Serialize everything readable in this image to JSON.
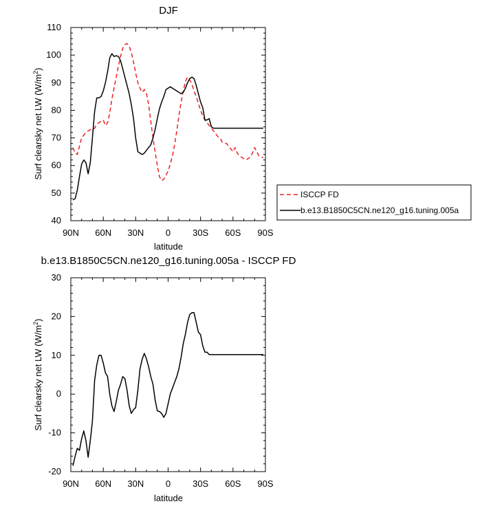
{
  "chart_data": [
    {
      "type": "line",
      "title": "DJF",
      "xlabel": "latitude",
      "ylabel": "Surf clearsky net LW (W/m",
      "ylabel_sup": "2",
      "ylabel_end": ")",
      "xlim": [
        -90,
        90
      ],
      "ylim": [
        40,
        110
      ],
      "x_ticks": [
        -90,
        -60,
        -30,
        0,
        30,
        60,
        90
      ],
      "x_tick_labels": [
        "90N",
        "60N",
        "30N",
        "0",
        "30S",
        "60S",
        "90S"
      ],
      "y_ticks": [
        40,
        50,
        60,
        70,
        80,
        90,
        100,
        110
      ],
      "y_tick_labels": [
        "40",
        "50",
        "60",
        "70",
        "80",
        "90",
        "100",
        "110"
      ],
      "grid": false,
      "legend_position": "right",
      "series": [
        {
          "name": "ISCCP FD",
          "color": "#e8221f",
          "dash": true,
          "x": [
            -88,
            -86,
            -84,
            -82,
            -80,
            -78,
            -76,
            -74,
            -72,
            -70,
            -68,
            -66,
            -64,
            -62,
            -60,
            -58,
            -56,
            -54,
            -52,
            -50,
            -48,
            -46,
            -44,
            -42,
            -40,
            -38,
            -36,
            -34,
            -32,
            -30,
            -28,
            -26,
            -24,
            -22,
            -20,
            -18,
            -16,
            -14,
            -12,
            -10,
            -8,
            -6,
            -4,
            -2,
            0,
            2,
            4,
            6,
            8,
            10,
            12,
            14,
            16,
            18,
            20,
            22,
            24,
            26,
            28,
            30,
            32,
            34,
            36,
            38,
            40,
            42,
            44,
            46,
            48,
            50,
            52,
            54,
            56,
            58,
            60,
            62,
            64,
            66,
            68,
            70,
            72,
            74,
            76,
            78,
            80,
            82,
            84,
            86,
            88
          ],
          "y": [
            66.5,
            64.5,
            64.0,
            67.0,
            70.0,
            71.0,
            72.0,
            72.5,
            73.0,
            73.0,
            73.5,
            75.0,
            75.5,
            76.0,
            76.5,
            74.5,
            75.5,
            79.0,
            84.0,
            88.0,
            92.0,
            96.0,
            99.5,
            102.5,
            103.8,
            104.2,
            103.2,
            101.0,
            97.5,
            93.5,
            90.0,
            88.0,
            86.5,
            87.5,
            86.0,
            82.0,
            76.0,
            70.0,
            65.0,
            60.0,
            56.0,
            54.5,
            55.0,
            56.5,
            58.0,
            60.5,
            63.5,
            67.5,
            72.5,
            78.0,
            83.0,
            87.0,
            90.5,
            92.0,
            91.0,
            89.5,
            87.0,
            85.0,
            82.5,
            80.0,
            78.0,
            76.5,
            75.5,
            74.5,
            73.5,
            72.5,
            71.5,
            70.5,
            70.0,
            68.5,
            68.0,
            68.0,
            67.0,
            66.0,
            65.0,
            66.5,
            64.5,
            63.5,
            63.0,
            62.5,
            62.0,
            62.5,
            63.0,
            64.5,
            66.5,
            65.0,
            63.5,
            63.0,
            63.0
          ]
        },
        {
          "name": "b.e13.B1850C5CN.ne120_g16.tuning.005a",
          "color": "#000000",
          "dash": false,
          "x": [
            -88,
            -86,
            -84,
            -82,
            -80,
            -78,
            -76,
            -74,
            -72,
            -70,
            -68,
            -66,
            -64,
            -62,
            -60,
            -58,
            -56,
            -54,
            -52,
            -50,
            -48,
            -46,
            -44,
            -42,
            -40,
            -38,
            -36,
            -34,
            -32,
            -30,
            -28,
            -26,
            -24,
            -22,
            -20,
            -18,
            -16,
            -14,
            -12,
            -10,
            -8,
            -6,
            -4,
            -2,
            0,
            2,
            4,
            6,
            8,
            10,
            12,
            14,
            16,
            18,
            20,
            22,
            24,
            26,
            28,
            30,
            32,
            34,
            36,
            38,
            40,
            42,
            44,
            46,
            48,
            50,
            52,
            54,
            56,
            58,
            60,
            62,
            64,
            66,
            68,
            70,
            72,
            74,
            76,
            78,
            80,
            82,
            84,
            86,
            88
          ],
          "y": [
            47.5,
            48.0,
            51.0,
            56.0,
            60.5,
            62.0,
            61.0,
            57.0,
            61.0,
            70.0,
            79.5,
            84.5,
            84.5,
            85.0,
            87.0,
            90.0,
            94.0,
            99.0,
            100.5,
            99.5,
            99.8,
            99.5,
            98.0,
            95.0,
            92.0,
            89.0,
            86.0,
            82.0,
            77.0,
            70.0,
            65.0,
            64.5,
            64.0,
            64.5,
            65.5,
            66.5,
            67.5,
            70.0,
            73.0,
            77.0,
            80.5,
            83.0,
            85.0,
            87.5,
            88.0,
            88.5,
            88.0,
            87.5,
            87.0,
            86.5,
            86.0,
            86.5,
            88.0,
            90.0,
            91.5,
            92.0,
            91.5,
            89.0,
            86.0,
            83.0,
            81.0,
            76.5,
            76.5,
            77.0,
            74.0,
            73.5,
            73.5,
            73.5,
            73.5,
            73.5,
            73.5,
            73.5,
            73.5,
            73.5,
            73.5,
            73.5,
            73.5,
            73.5,
            73.5,
            73.5,
            73.5,
            73.5,
            73.5,
            73.5,
            73.5,
            73.5,
            73.5,
            73.5,
            73.5
          ]
        }
      ]
    },
    {
      "type": "line",
      "title": "b.e13.B1850C5CN.ne120_g16.tuning.005a - ISCCP FD",
      "xlabel": "latitude",
      "ylabel": "Surf clearsky net LW (W/m",
      "ylabel_sup": "2",
      "ylabel_end": ")",
      "xlim": [
        -90,
        90
      ],
      "ylim": [
        -20,
        30
      ],
      "x_ticks": [
        -90,
        -60,
        -30,
        0,
        30,
        60,
        90
      ],
      "x_tick_labels": [
        "90N",
        "60N",
        "30N",
        "0",
        "30S",
        "60S",
        "90S"
      ],
      "y_ticks": [
        -20,
        -10,
        0,
        10,
        20,
        30
      ],
      "y_tick_labels": [
        "-20",
        "-10",
        "0",
        "10",
        "20",
        "30"
      ],
      "grid": false,
      "series": [
        {
          "name": "",
          "color": "#000000",
          "dash": false,
          "x": [
            -88,
            -86,
            -84,
            -82,
            -80,
            -78,
            -76,
            -74,
            -72,
            -70,
            -68,
            -66,
            -64,
            -62,
            -60,
            -58,
            -56,
            -54,
            -52,
            -50,
            -48,
            -46,
            -44,
            -42,
            -40,
            -38,
            -36,
            -34,
            -32,
            -30,
            -28,
            -26,
            -24,
            -22,
            -20,
            -18,
            -16,
            -14,
            -12,
            -10,
            -8,
            -6,
            -4,
            -2,
            0,
            2,
            4,
            6,
            8,
            10,
            12,
            14,
            16,
            18,
            20,
            22,
            24,
            26,
            28,
            30,
            32,
            34,
            36,
            38,
            40,
            42,
            44,
            46,
            48,
            50,
            52,
            54,
            56,
            58,
            60,
            62,
            64,
            66,
            68,
            70,
            72,
            74,
            76,
            78,
            80,
            82,
            84,
            86,
            88
          ],
          "y": [
            -18.5,
            -16.0,
            -14.0,
            -14.5,
            -11.5,
            -9.5,
            -12.0,
            -16.3,
            -12.0,
            -7.0,
            3.5,
            7.5,
            10.0,
            10.0,
            8.0,
            5.5,
            4.5,
            0.0,
            -3.0,
            -4.5,
            -2.0,
            1.0,
            2.5,
            4.5,
            4.0,
            1.0,
            -3.0,
            -5.0,
            -4.0,
            -3.5,
            1.0,
            6.5,
            9.0,
            10.5,
            9.0,
            7.0,
            4.5,
            2.5,
            -1.5,
            -4.3,
            -4.5,
            -5.0,
            -6.0,
            -5.0,
            -2.5,
            0.0,
            1.5,
            3.0,
            4.5,
            6.5,
            9.5,
            13.0,
            15.5,
            18.5,
            20.5,
            21.0,
            21.0,
            18.5,
            16.0,
            15.3,
            12.5,
            10.8,
            10.8,
            10.2,
            10.2,
            10.2,
            10.2,
            10.2,
            10.2,
            10.2,
            10.2,
            10.2,
            10.2,
            10.2,
            10.2,
            10.2,
            10.2,
            10.2,
            10.2,
            10.2,
            10.2,
            10.2,
            10.2,
            10.2,
            10.2,
            10.2,
            10.2,
            10.2,
            10.2
          ]
        }
      ]
    }
  ]
}
